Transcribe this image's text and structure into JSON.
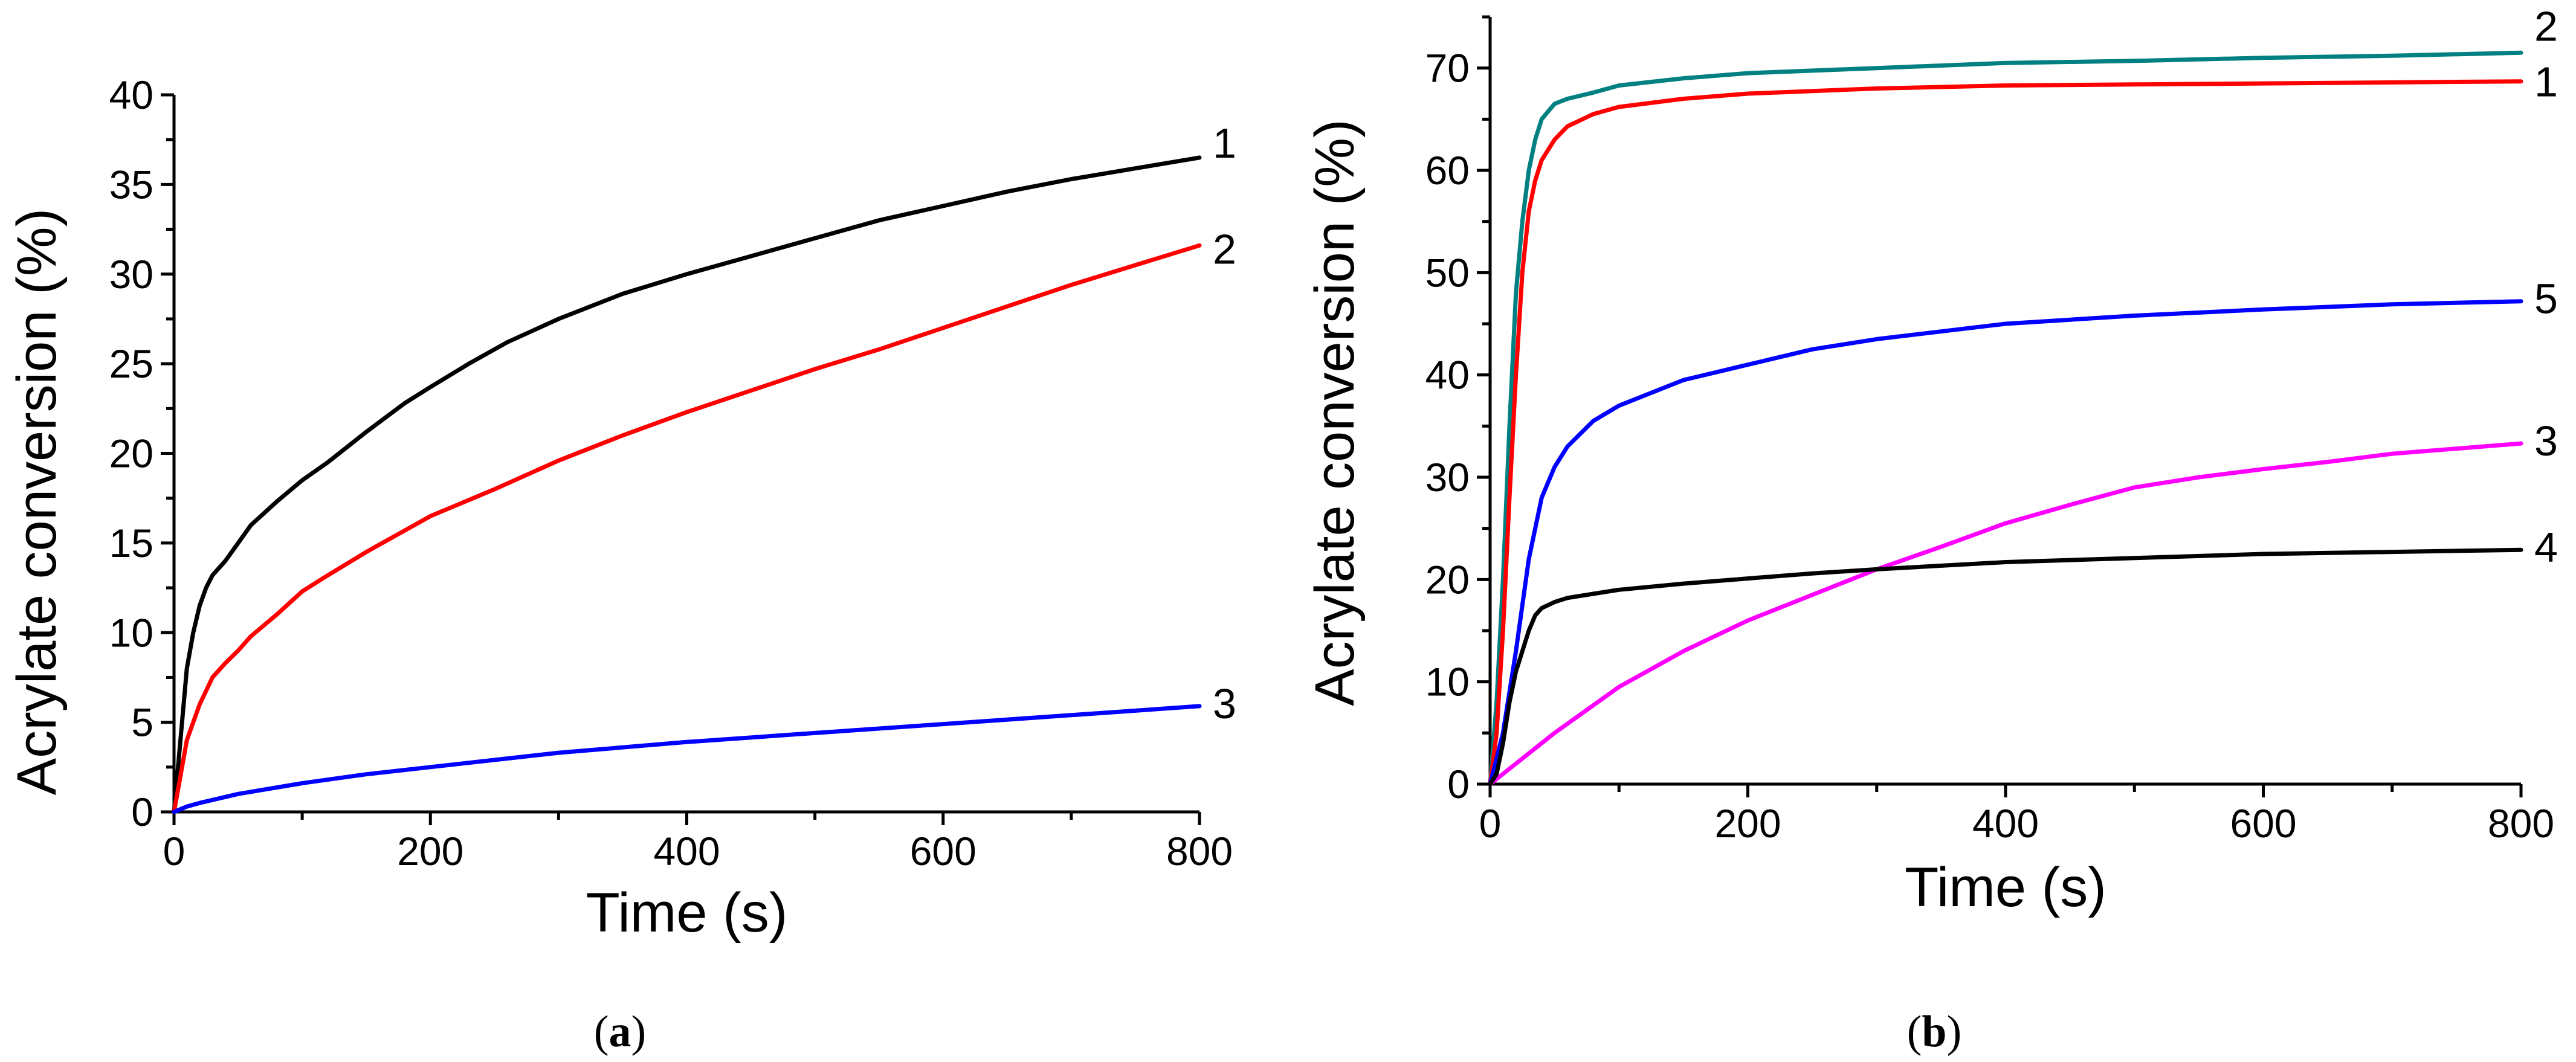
{
  "chart_data": [
    {
      "panel": "a",
      "caption_letter": "a",
      "type": "line",
      "xlabel": "Time (s)",
      "ylabel": "Acrylate conversion (%)",
      "xlim": [
        0,
        800
      ],
      "ylim": [
        0,
        40
      ],
      "xticks": [
        0,
        200,
        400,
        600,
        800
      ],
      "yticks": [
        0,
        5,
        10,
        15,
        20,
        25,
        30,
        35,
        40
      ],
      "grid": false,
      "series": [
        {
          "name": "1",
          "label": "1",
          "color": "#000000",
          "x": [
            0,
            5,
            10,
            15,
            20,
            25,
            30,
            40,
            50,
            60,
            80,
            100,
            120,
            150,
            180,
            200,
            230,
            260,
            300,
            350,
            400,
            450,
            500,
            550,
            600,
            650,
            700,
            750,
            800
          ],
          "y": [
            0,
            4,
            8,
            10,
            11.5,
            12.5,
            13.2,
            14,
            15,
            16,
            17.3,
            18.5,
            19.5,
            21.2,
            22.8,
            23.7,
            25,
            26.2,
            27.5,
            28.9,
            30,
            31,
            32,
            33,
            33.8,
            34.6,
            35.3,
            35.9,
            36.5
          ]
        },
        {
          "name": "2",
          "label": "2",
          "color": "#ff0000",
          "x": [
            0,
            5,
            10,
            15,
            20,
            30,
            40,
            50,
            60,
            80,
            100,
            120,
            150,
            200,
            250,
            300,
            350,
            400,
            450,
            500,
            550,
            600,
            650,
            700,
            750,
            800
          ],
          "y": [
            0,
            2,
            4,
            5,
            6,
            7.5,
            8.3,
            9,
            9.8,
            11,
            12.3,
            13.2,
            14.5,
            16.5,
            18,
            19.6,
            21,
            22.3,
            23.5,
            24.7,
            25.8,
            27,
            28.2,
            29.4,
            30.5,
            31.6
          ]
        },
        {
          "name": "3",
          "label": "3",
          "color": "#0000ff",
          "x": [
            0,
            10,
            20,
            50,
            100,
            150,
            200,
            300,
            400,
            500,
            600,
            700,
            800
          ],
          "y": [
            0,
            0.3,
            0.5,
            1,
            1.6,
            2.1,
            2.5,
            3.3,
            3.9,
            4.4,
            4.9,
            5.4,
            5.9
          ]
        }
      ]
    },
    {
      "panel": "b",
      "caption_letter": "b",
      "type": "line",
      "xlabel": "Time (s)",
      "ylabel": "Acrylate conversion (%)",
      "xlim": [
        0,
        800
      ],
      "ylim": [
        0,
        75
      ],
      "xticks": [
        0,
        200,
        400,
        600,
        800
      ],
      "yticks": [
        0,
        10,
        20,
        30,
        40,
        50,
        60,
        70
      ],
      "grid": false,
      "series": [
        {
          "name": "2",
          "label": "2",
          "color": "#008080",
          "x": [
            0,
            5,
            10,
            15,
            20,
            25,
            30,
            35,
            40,
            50,
            60,
            80,
            100,
            150,
            200,
            300,
            400,
            500,
            600,
            700,
            800
          ],
          "y": [
            0,
            8,
            20,
            35,
            48,
            55,
            60,
            63,
            65,
            66.5,
            67,
            67.6,
            68.3,
            69,
            69.5,
            70,
            70.5,
            70.7,
            71,
            71.2,
            71.5
          ]
        },
        {
          "name": "1",
          "label": "1",
          "color": "#ff0000",
          "x": [
            0,
            5,
            10,
            15,
            20,
            25,
            30,
            35,
            40,
            50,
            60,
            80,
            100,
            150,
            200,
            300,
            400,
            500,
            600,
            700,
            800
          ],
          "y": [
            0,
            5,
            15,
            28,
            40,
            50,
            56,
            59,
            61,
            63,
            64.3,
            65.5,
            66.2,
            67,
            67.5,
            68,
            68.3,
            68.4,
            68.5,
            68.6,
            68.7
          ]
        },
        {
          "name": "5",
          "label": "5",
          "color": "#0000ff",
          "x": [
            0,
            10,
            20,
            30,
            40,
            50,
            60,
            80,
            100,
            150,
            200,
            250,
            300,
            400,
            500,
            600,
            700,
            800
          ],
          "y": [
            0,
            5,
            13,
            22,
            28,
            31,
            33,
            35.5,
            37,
            39.5,
            41,
            42.5,
            43.5,
            45,
            45.8,
            46.4,
            46.9,
            47.2
          ]
        },
        {
          "name": "3",
          "label": "3",
          "color": "#ff00ff",
          "x": [
            0,
            20,
            50,
            100,
            150,
            200,
            250,
            300,
            350,
            400,
            450,
            500,
            550,
            600,
            650,
            700,
            750,
            800
          ],
          "y": [
            0,
            2,
            5,
            9.5,
            13,
            16,
            18.5,
            21,
            23.2,
            25.5,
            27.3,
            29,
            30,
            30.8,
            31.5,
            32.3,
            32.8,
            33.3
          ]
        },
        {
          "name": "4",
          "label": "4",
          "color": "#000000",
          "x": [
            0,
            5,
            10,
            15,
            20,
            25,
            30,
            35,
            40,
            50,
            60,
            80,
            100,
            150,
            200,
            250,
            300,
            400,
            500,
            600,
            700,
            800
          ],
          "y": [
            0,
            1,
            4,
            8,
            11,
            13,
            15,
            16.5,
            17.2,
            17.8,
            18.2,
            18.6,
            19,
            19.6,
            20.1,
            20.6,
            21,
            21.7,
            22.1,
            22.5,
            22.7,
            22.9
          ]
        }
      ]
    }
  ]
}
